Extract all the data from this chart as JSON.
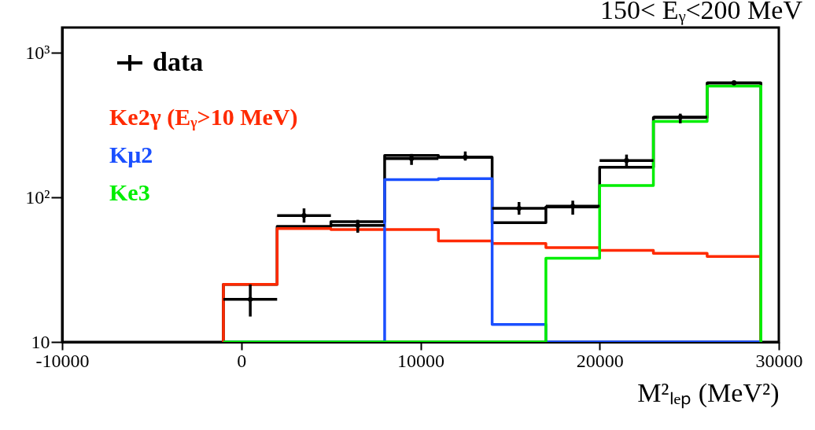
{
  "chart_data": {
    "type": "histogram",
    "title": "150< Eᵧ<200 MeV",
    "xlabel": "M²ₗₑₚ  (MeV²)",
    "bins": [
      -1000,
      2000,
      5000,
      8000,
      11000,
      14000,
      17000,
      20000,
      23000,
      26000,
      29000
    ],
    "series": [
      {
        "color": "#000000",
        "values": [
          25,
          63,
          68,
          195,
          190,
          67,
          86,
          162,
          357,
          620
        ]
      },
      {
        "name": "Ke2γ (Eᵧ>10 MeV)",
        "color": "#ff2a00",
        "values": [
          25,
          61,
          60,
          60,
          50,
          48,
          45,
          43,
          41,
          39
        ]
      },
      {
        "name": "Kμ2",
        "color": "#1a4fff",
        "values": [
          null,
          null,
          null,
          133,
          135,
          13.2,
          null,
          null,
          null,
          null
        ]
      },
      {
        "name": "Ke3",
        "color": "#00ee00",
        "values": [
          null,
          null,
          null,
          null,
          null,
          null,
          38,
          121,
          336,
          590
        ]
      },
      {
        "type": "scatter",
        "name": "data",
        "color": "#000000",
        "x": [
          500,
          3500,
          6500,
          9500,
          12500,
          15500,
          18500,
          21500,
          24500,
          27500
        ],
        "values": [
          19.7,
          75,
          64,
          186,
          190,
          84,
          87,
          180,
          360,
          620
        ],
        "errors": [
          [
            15,
            25
          ],
          [
            67,
            84
          ],
          [
            57,
            70
          ],
          [
            168,
            200
          ],
          [
            180,
            208
          ],
          [
            76,
            93
          ],
          [
            76,
            95
          ],
          [
            162,
            198
          ],
          [
            326,
            380
          ],
          [
            600,
            645
          ]
        ],
        "xerrors": [
          1500,
          1500,
          1500,
          1500,
          1500,
          1500,
          1500,
          1500,
          1500,
          1500
        ]
      }
    ],
    "xlim": [
      -10000,
      30000
    ],
    "xticks": [
      -10000,
      0,
      10000,
      20000,
      30000
    ],
    "ylim": [
      10,
      1500
    ],
    "yticks": [
      10,
      {
        "value": 100,
        "label": "10²"
      },
      {
        "value": 1000,
        "label": "10³"
      }
    ],
    "log": "y",
    "grid": false,
    "legend": "top left"
  }
}
